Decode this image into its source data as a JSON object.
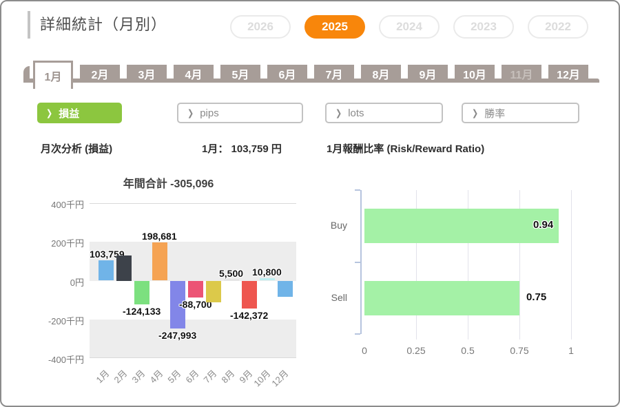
{
  "app": {
    "title": "詳細統計（月別）"
  },
  "years": {
    "active_color": "#F8860B",
    "items": [
      {
        "label": "2026",
        "active": false
      },
      {
        "label": "2025",
        "active": true
      },
      {
        "label": "2024",
        "active": false
      },
      {
        "label": "2023",
        "active": false
      },
      {
        "label": "2022",
        "active": false
      }
    ]
  },
  "month_tabs": {
    "items": [
      {
        "label": "1月",
        "state": "active"
      },
      {
        "label": "2月",
        "state": "normal"
      },
      {
        "label": "3月",
        "state": "normal"
      },
      {
        "label": "4月",
        "state": "normal"
      },
      {
        "label": "5月",
        "state": "normal"
      },
      {
        "label": "6月",
        "state": "normal"
      },
      {
        "label": "7月",
        "state": "normal"
      },
      {
        "label": "8月",
        "state": "normal"
      },
      {
        "label": "9月",
        "state": "normal"
      },
      {
        "label": "10月",
        "state": "normal"
      },
      {
        "label": "11月",
        "state": "disabled"
      },
      {
        "label": "12月",
        "state": "normal"
      }
    ]
  },
  "filters": {
    "active_color": "#8CC63F",
    "chevron": "❯",
    "items": [
      {
        "label": "損益",
        "active": true
      },
      {
        "label": "pips",
        "active": false
      },
      {
        "label": "lots",
        "active": false
      },
      {
        "label": "勝率",
        "active": false
      }
    ]
  },
  "section": {
    "left_title": "月次分析 (損益)",
    "month_value": "1月： 103,759 円",
    "right_title": "1月報酬比率 (Risk/Reward Ratio)"
  },
  "chart_data": [
    {
      "type": "bar",
      "title": "年間合計 -305,096",
      "categories": [
        "1月",
        "2月",
        "3月",
        "4月",
        "5月",
        "6月",
        "7月",
        "8月",
        "9月",
        "10月",
        "12月"
      ],
      "values": [
        103759,
        131000,
        -124133,
        198681,
        -247993,
        -88700,
        -113000,
        5500,
        -142372,
        10800,
        -85000
      ],
      "labels": [
        "103,759",
        "",
        "-124,133",
        "198,681",
        "-247,993",
        "-88,700",
        "",
        "5,500",
        "-142,372",
        "10,800",
        ""
      ],
      "colors": [
        "#70B4E8",
        "#3D424A",
        "#7CE07F",
        "#F5A353",
        "#8286E8",
        "#EC5475",
        "#DCC94A",
        "#D8D8D8",
        "#EE564F",
        "#BCEFF2",
        "#70B4E8"
      ],
      "ylabel": "円",
      "yticks": [
        "400千円",
        "200千円",
        "0円",
        "-200千円",
        "-400千円"
      ],
      "ylim": [
        -400000,
        400000
      ],
      "band_color": "#EDEDED",
      "grid": "alternating-bands",
      "note": "values for 2月/7月/12月 estimated from bar heights (no visible data label)"
    },
    {
      "type": "bar",
      "orientation": "horizontal",
      "title": "",
      "categories": [
        "Buy",
        "Sell"
      ],
      "values": [
        0.94,
        0.75
      ],
      "labels": [
        "0.94",
        "0.75"
      ],
      "label_inside": [
        true,
        false
      ],
      "bar_color": "#A4F1A6",
      "xticks": [
        "0",
        "0.25",
        "0.5",
        "0.75",
        "1"
      ],
      "xlim": [
        0,
        1
      ],
      "grid": "vertical",
      "legend": "none"
    }
  ]
}
